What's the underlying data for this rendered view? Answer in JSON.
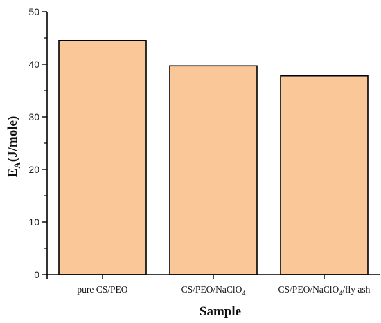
{
  "chart_data": {
    "type": "bar",
    "title": "",
    "xlabel": "Sample",
    "ylabel": {
      "main": "E",
      "sub": "A",
      "rest": "(J/mole)"
    },
    "ylim": [
      0,
      50
    ],
    "yticks": [
      "0",
      "10",
      "20",
      "30",
      "40",
      "50"
    ],
    "categories": [
      {
        "label": "pure CS/PEO",
        "parts": [
          {
            "t": "pure CS/PEO"
          }
        ]
      },
      {
        "label": "CS/PEO/NaClO4",
        "parts": [
          {
            "t": "CS/PEO/NaClO"
          },
          {
            "t": "4",
            "sub": true
          }
        ]
      },
      {
        "label": "CS/PEO/NaClO4/fly ash",
        "parts": [
          {
            "t": "CS/PEO/NaClO"
          },
          {
            "t": "4",
            "sub": true
          },
          {
            "t": "/fly ash"
          }
        ]
      }
    ],
    "values": [
      44.5,
      39.7,
      37.8
    ],
    "grid": false,
    "legend": "none",
    "bar_fill": "#FAC898",
    "bar_stroke": "#000000"
  }
}
